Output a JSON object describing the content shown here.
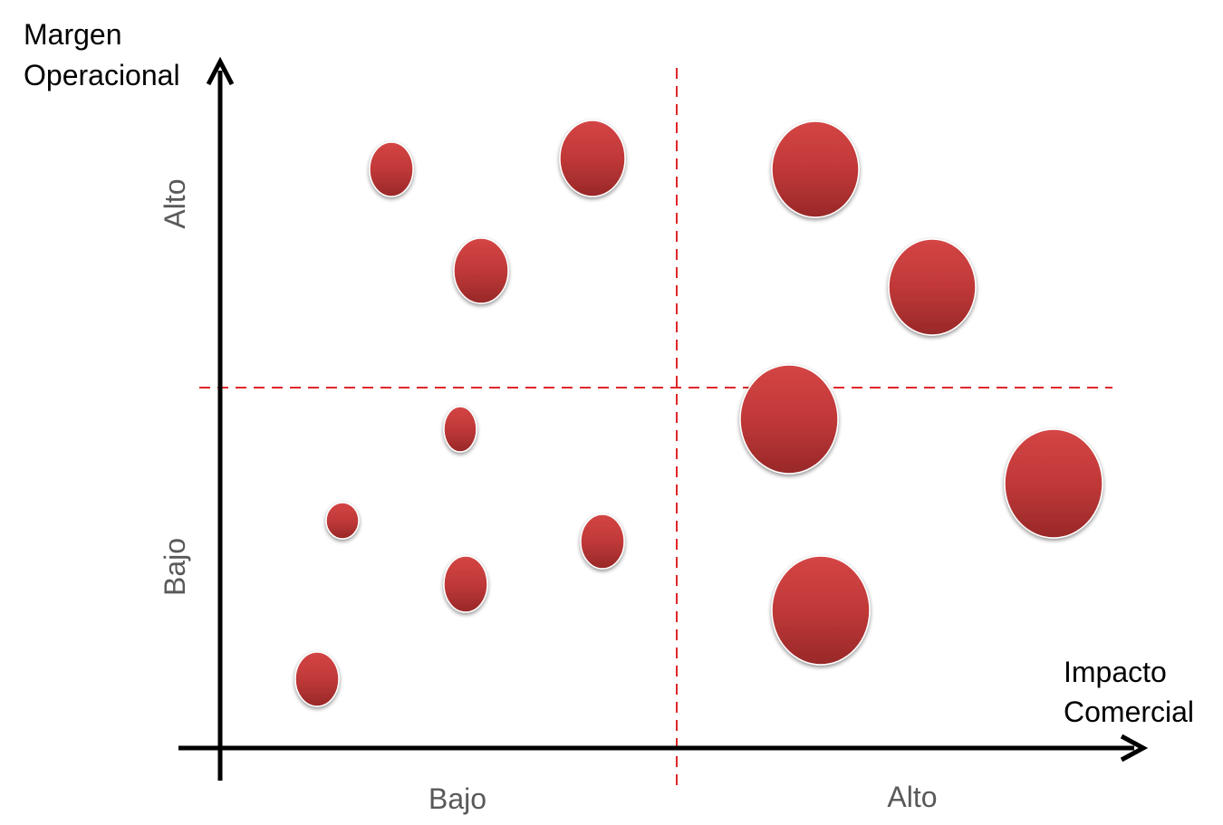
{
  "diagram": {
    "y_axis_title_line1": "Margen",
    "y_axis_title_line2": "Operacional",
    "x_axis_title_line1": "Impacto",
    "x_axis_title_line2": "Comercial",
    "x_tick_low": "Bajo",
    "x_tick_high": "Alto",
    "y_tick_high": "Alto",
    "y_tick_low": "Bajo"
  },
  "colors": {
    "bubble_top": "#d04040",
    "bubble_bottom": "#9c2a2a",
    "bubble_edge": "#8a2222",
    "divider": "#e0262a",
    "axis": "#000000"
  }
}
